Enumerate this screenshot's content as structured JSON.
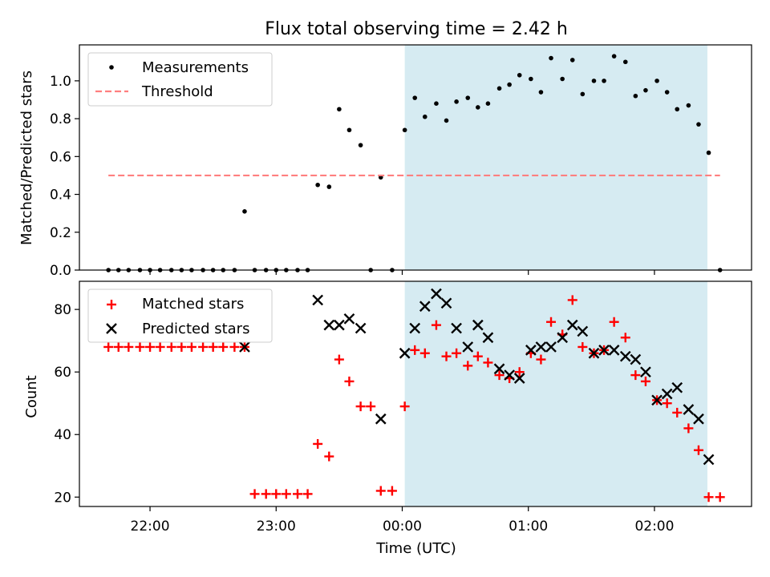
{
  "chart_data": [
    {
      "type": "scatter",
      "title": "Flux total observing time = 2.42 h",
      "xlabel": "",
      "ylabel": "Matched/Predicted stars",
      "ylim": [
        0,
        1.19
      ],
      "yticks": [
        "0.0",
        "0.2",
        "0.4",
        "0.6",
        "0.8",
        "1.0"
      ],
      "xlim_hours": [
        -2.56,
        2.77
      ],
      "legend_position": "upper left",
      "grid": false,
      "highlight_span_hours": [
        0.02,
        2.42
      ],
      "highlight_color": "#add8e6",
      "series": [
        {
          "name": "Measurements",
          "marker": "dot",
          "color": "#000000",
          "x_hours": [
            -2.33,
            -2.25,
            -2.17,
            -2.08,
            -2.0,
            -1.92,
            -1.83,
            -1.75,
            -1.67,
            -1.58,
            -1.5,
            -1.42,
            -1.33,
            -1.25,
            -1.17,
            -1.08,
            -1.0,
            -0.92,
            -0.83,
            -0.75,
            -0.67,
            -0.58,
            -0.5,
            -0.42,
            -0.33,
            -0.25,
            -0.17,
            -0.08,
            0.02,
            0.1,
            0.18,
            0.27,
            0.35,
            0.43,
            0.52,
            0.6,
            0.68,
            0.77,
            0.85,
            0.93,
            1.02,
            1.1,
            1.18,
            1.27,
            1.35,
            1.43,
            1.52,
            1.6,
            1.68,
            1.77,
            1.85,
            1.93,
            2.02,
            2.1,
            2.18,
            2.27,
            2.35,
            2.43,
            2.52
          ],
          "values": [
            0.0,
            0.0,
            0.0,
            0.0,
            0.0,
            0.0,
            0.0,
            0.0,
            0.0,
            0.0,
            0.0,
            0.0,
            0.0,
            0.31,
            0.0,
            0.0,
            0.0,
            0.0,
            0.0,
            0.0,
            0.45,
            0.44,
            0.85,
            0.74,
            0.66,
            0.0,
            0.49,
            0.0,
            0.74,
            0.91,
            0.81,
            0.88,
            0.79,
            0.89,
            0.91,
            0.86,
            0.88,
            0.96,
            0.98,
            1.03,
            1.01,
            0.94,
            1.12,
            1.01,
            1.11,
            0.93,
            1.0,
            1.0,
            1.13,
            1.1,
            0.92,
            0.95,
            1.0,
            0.94,
            0.85,
            0.87,
            0.77,
            0.62,
            0.0
          ]
        },
        {
          "name": "Threshold",
          "marker": "dashed-line",
          "color": "#ff7f7f",
          "x_hours": [
            -2.33,
            2.52
          ],
          "values": [
            0.5,
            0.5
          ]
        }
      ]
    },
    {
      "type": "scatter",
      "title": "",
      "xlabel": "Time (UTC)",
      "ylabel": "Count",
      "ylim": [
        17,
        89
      ],
      "yticks": [
        "20",
        "40",
        "60",
        "80"
      ],
      "xlim_hours": [
        -2.56,
        2.77
      ],
      "xticks": [
        {
          "hour": -2.0,
          "label": "22:00"
        },
        {
          "hour": -1.0,
          "label": "23:00"
        },
        {
          "hour": 0.0,
          "label": "00:00"
        },
        {
          "hour": 1.0,
          "label": "01:00"
        },
        {
          "hour": 2.0,
          "label": "02:00"
        }
      ],
      "legend_position": "upper left",
      "grid": false,
      "highlight_span_hours": [
        0.02,
        2.42
      ],
      "highlight_color": "#add8e6",
      "series": [
        {
          "name": "Matched stars",
          "marker": "plus",
          "color": "#ff0000",
          "x_hours": [
            -2.33,
            -2.25,
            -2.17,
            -2.08,
            -2.0,
            -1.92,
            -1.83,
            -1.75,
            -1.67,
            -1.58,
            -1.5,
            -1.42,
            -1.33,
            -1.25,
            -1.17,
            -1.08,
            -1.0,
            -0.92,
            -0.83,
            -0.75,
            -0.67,
            -0.58,
            -0.5,
            -0.42,
            -0.33,
            -0.25,
            -0.17,
            -0.08,
            0.02,
            0.1,
            0.18,
            0.27,
            0.35,
            0.43,
            0.52,
            0.6,
            0.68,
            0.77,
            0.85,
            0.93,
            1.02,
            1.1,
            1.18,
            1.27,
            1.35,
            1.43,
            1.52,
            1.6,
            1.68,
            1.77,
            1.85,
            1.93,
            2.02,
            2.1,
            2.18,
            2.27,
            2.35,
            2.43,
            2.52
          ],
          "values": [
            68,
            68,
            68,
            68,
            68,
            68,
            68,
            68,
            68,
            68,
            68,
            68,
            68,
            68,
            21,
            21,
            21,
            21,
            21,
            21,
            37,
            33,
            64,
            57,
            49,
            49,
            22,
            22,
            49,
            67,
            66,
            75,
            65,
            66,
            62,
            65,
            63,
            59,
            58,
            60,
            66,
            64,
            76,
            72,
            83,
            68,
            66,
            67,
            76,
            71,
            59,
            57,
            51,
            50,
            47,
            42,
            35,
            20,
            20
          ]
        },
        {
          "name": "Predicted stars",
          "marker": "x",
          "color": "#000000",
          "x_hours": [
            -1.25,
            -0.67,
            -0.58,
            -0.5,
            -0.42,
            -0.33,
            -0.17,
            0.02,
            0.1,
            0.18,
            0.27,
            0.35,
            0.43,
            0.52,
            0.6,
            0.68,
            0.77,
            0.85,
            0.93,
            1.02,
            1.1,
            1.18,
            1.27,
            1.35,
            1.43,
            1.52,
            1.6,
            1.68,
            1.77,
            1.85,
            1.93,
            2.02,
            2.1,
            2.18,
            2.27,
            2.35,
            2.43
          ],
          "values": [
            68,
            83,
            75,
            75,
            77,
            74,
            45,
            66,
            74,
            81,
            85,
            82,
            74,
            68,
            75,
            71,
            61,
            59,
            58,
            67,
            68,
            68,
            71,
            75,
            73,
            66,
            67,
            67,
            65,
            64,
            60,
            51,
            53,
            55,
            48,
            45,
            32
          ]
        }
      ]
    }
  ]
}
